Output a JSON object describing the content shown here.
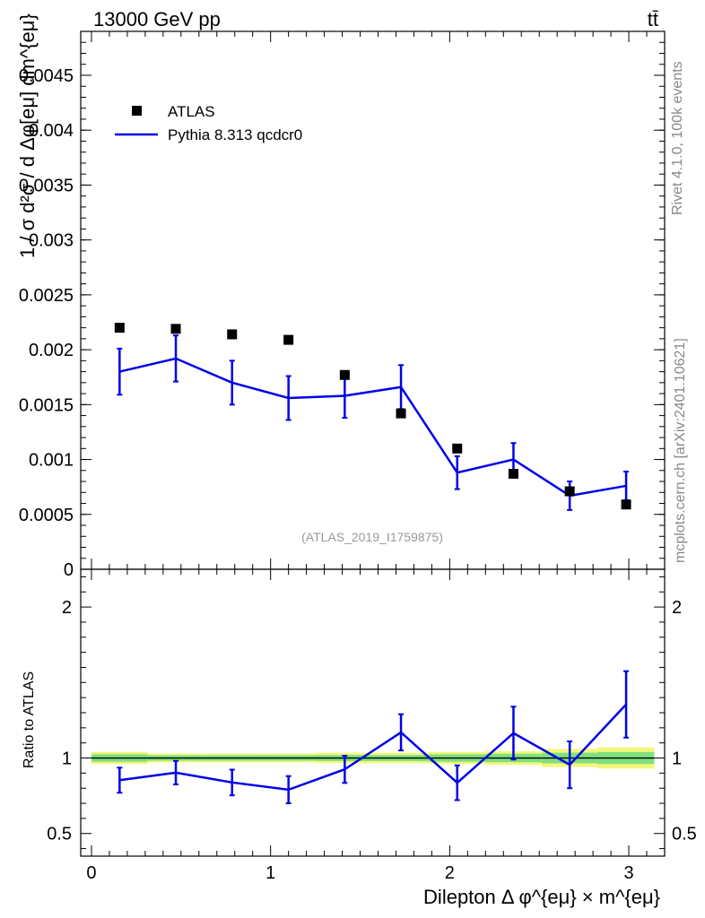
{
  "header": {
    "energy_label": "13000 GeV pp",
    "process_label": "tt̄"
  },
  "side_labels": {
    "rivet": "Rivet 4.1.0,  100k events",
    "mcplots": "mcplots.cern.ch [arXiv:2401.10621]"
  },
  "colors": {
    "mc": "#0000e6",
    "data": "#000000",
    "band_inner": "#7fe07f",
    "band_outer": "#f4f77a",
    "watermark": "#999999"
  },
  "chart_data": [
    {
      "type": "scatter",
      "panel": "main",
      "ylabel": "1 / σ  d²σ / d Δφ[eμ] dm^{eμ}",
      "ylim": [
        0,
        0.0049
      ],
      "yticks": [
        0,
        0.0005,
        0.001,
        0.0015,
        0.002,
        0.0025,
        0.003,
        0.0035,
        0.004,
        0.0045
      ],
      "ytick_labels": [
        "0",
        "0.0005",
        "0.001",
        "0.0015",
        "0.002",
        "0.0025",
        "0.003",
        "0.0035",
        "0.004",
        "0.0045"
      ],
      "xlim": [
        -0.06,
        3.2
      ],
      "watermark": "(ATLAS_2019_I1759875)",
      "legend": {
        "placement": "top-left",
        "entries": [
          "ATLAS",
          "Pythia 8.313 qcdcr0"
        ]
      },
      "series": [
        {
          "name": "ATLAS",
          "style": "markers",
          "x": [
            0.157,
            0.471,
            0.785,
            1.1,
            1.414,
            1.728,
            2.042,
            2.356,
            2.67,
            2.985
          ],
          "y": [
            0.0022,
            0.00219,
            0.00214,
            0.00209,
            0.00177,
            0.00142,
            0.0011,
            0.00087,
            0.00071,
            0.00059
          ]
        },
        {
          "name": "Pythia 8.313 qcdcr0",
          "style": "line",
          "x": [
            0.157,
            0.471,
            0.785,
            1.1,
            1.414,
            1.728,
            2.042,
            2.356,
            2.67,
            2.985
          ],
          "y": [
            0.0018,
            0.00192,
            0.0017,
            0.00156,
            0.00158,
            0.00166,
            0.00088,
            0.001,
            0.00067,
            0.00076
          ],
          "err": [
            0.00021,
            0.00021,
            0.0002,
            0.0002,
            0.0002,
            0.0002,
            0.00015,
            0.00015,
            0.00013,
            0.00013
          ]
        }
      ]
    },
    {
      "type": "line",
      "panel": "ratio",
      "ylabel": "Ratio to ATLAS",
      "xlabel": "Dilepton Δ φ^{eμ} × m^{eμ}",
      "ylim": [
        0.35,
        2.25
      ],
      "yticks": [
        0.5,
        1,
        2
      ],
      "ytick_labels": [
        "0.5",
        "1",
        "2"
      ],
      "xlim": [
        -0.06,
        3.2
      ],
      "xticks": [
        0,
        1,
        2,
        3
      ],
      "xtick_labels": [
        "0",
        "1",
        "2",
        "3"
      ],
      "reference": 1,
      "band_edges": [
        0,
        0.314,
        0.628,
        0.942,
        1.257,
        1.571,
        1.885,
        2.199,
        2.513,
        2.827,
        3.142
      ],
      "band_inner": [
        0.025,
        0.018,
        0.018,
        0.018,
        0.02,
        0.02,
        0.025,
        0.028,
        0.035,
        0.04
      ],
      "band_outer": [
        0.04,
        0.03,
        0.03,
        0.03,
        0.035,
        0.035,
        0.04,
        0.045,
        0.06,
        0.07
      ],
      "series": [
        {
          "name": "Pythia 8.313 qcdcr0",
          "x": [
            0.157,
            0.471,
            0.785,
            1.1,
            1.414,
            1.728,
            2.042,
            2.356,
            2.67,
            2.985
          ],
          "y": [
            0.853,
            0.903,
            0.838,
            0.79,
            0.925,
            1.17,
            0.836,
            1.165,
            0.955,
            1.355
          ],
          "err": [
            0.083,
            0.078,
            0.085,
            0.09,
            0.09,
            0.12,
            0.115,
            0.175,
            0.155,
            0.22
          ]
        }
      ]
    }
  ]
}
